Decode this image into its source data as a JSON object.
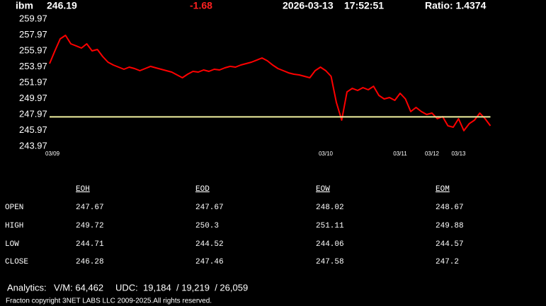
{
  "header": {
    "symbol": "ibm",
    "price": "246.19",
    "change": "-1.68",
    "date": "2026-03-13",
    "time": "17:52:51",
    "ratio": "Ratio: 1.4374"
  },
  "chart_data": {
    "type": "line",
    "color": "#ff0000",
    "categories": [
      "03/09",
      null,
      null,
      null,
      null,
      null,
      null,
      null,
      null,
      null,
      null,
      null,
      null,
      null,
      null,
      null,
      null,
      null,
      null,
      null,
      null,
      null,
      null,
      null,
      null,
      null,
      null,
      null,
      null,
      null,
      null,
      null,
      null,
      null,
      null,
      null,
      null,
      null,
      null,
      null,
      null,
      null,
      null,
      null,
      null,
      null,
      null,
      null,
      null,
      null,
      null,
      null,
      "03/10",
      null,
      null,
      null,
      null,
      null,
      null,
      null,
      null,
      null,
      null,
      null,
      null,
      null,
      "03/11",
      null,
      null,
      null,
      null,
      null,
      "03/12",
      null,
      null,
      null,
      null,
      "03/13",
      null,
      null,
      null,
      null,
      null,
      null
    ],
    "values": [
      254.37,
      255.97,
      257.48,
      257.93,
      256.86,
      256.6,
      256.33,
      256.86,
      255.97,
      256.15,
      255.26,
      254.55,
      254.19,
      253.93,
      253.66,
      253.93,
      253.75,
      253.48,
      253.75,
      254.02,
      253.84,
      253.66,
      253.48,
      253.3,
      252.95,
      252.59,
      253.04,
      253.39,
      253.3,
      253.57,
      253.39,
      253.66,
      253.57,
      253.84,
      254.02,
      253.93,
      254.19,
      254.37,
      254.55,
      254.81,
      255.08,
      254.73,
      254.19,
      253.75,
      253.48,
      253.21,
      253.04,
      252.95,
      252.77,
      252.59,
      253.48,
      253.93,
      253.48,
      252.77,
      249.48,
      247.26,
      250.81,
      251.26,
      250.99,
      251.35,
      251.08,
      251.52,
      250.37,
      249.93,
      250.1,
      249.75,
      250.64,
      249.93,
      248.33,
      248.86,
      248.33,
      247.97,
      248.15,
      247.44,
      247.7,
      246.55,
      246.37,
      247.44,
      245.93,
      246.81,
      247.26,
      248.15,
      247.44,
      246.55
    ],
    "ylim": [
      243.97,
      259.97
    ],
    "yticks": [
      243.97,
      245.97,
      247.97,
      249.97,
      251.97,
      253.97,
      255.97,
      257.97,
      259.97
    ],
    "hline": {
      "value": 247.67,
      "color": "#f0f0a0"
    }
  },
  "table": {
    "columns": [
      "EOH",
      "EOD",
      "EOW",
      "EOM"
    ],
    "rows": [
      [
        "OPEN",
        247.67,
        247.67,
        248.02,
        248.67
      ],
      [
        "HIGH",
        249.72,
        250.3,
        251.11,
        249.88
      ],
      [
        "LOW",
        244.71,
        244.52,
        244.06,
        244.57
      ],
      [
        "CLOSE",
        246.28,
        247.46,
        247.58,
        247.2
      ]
    ]
  },
  "analytics": {
    "label": "Analytics:",
    "vm": "V/M: 64,462",
    "udc": "UDC:  19,184  / 19,219  / 26,059"
  },
  "footer": "Fracton copyright 3NET LABS LLC 2009-2025.All rights reserved."
}
